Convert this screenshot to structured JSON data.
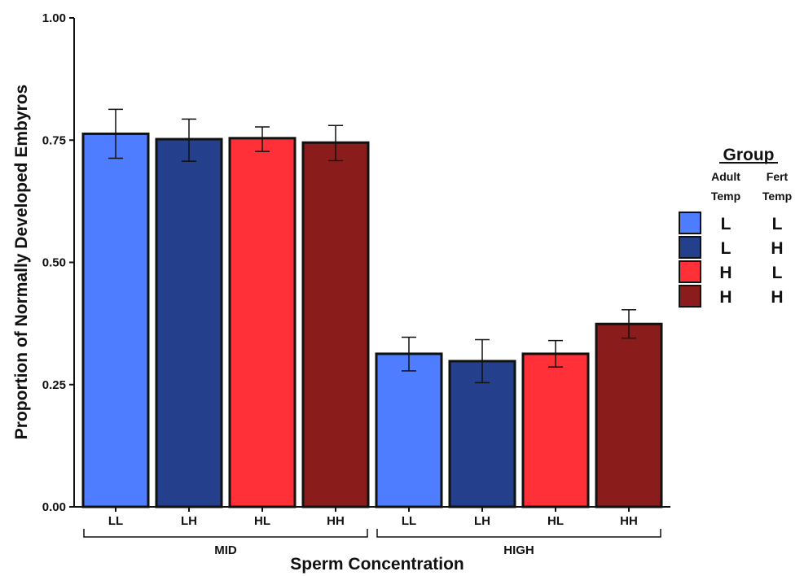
{
  "chart_data": {
    "type": "bar",
    "ylabel": "Proportion of Normally Developed Embyros",
    "xlabel": "Sperm Concentration",
    "ylim": [
      0,
      1
    ],
    "yticks": [
      "0.00",
      "0.25",
      "0.50",
      "0.75",
      "1.00"
    ],
    "grid": false,
    "groups": [
      {
        "name": "MID",
        "categories": [
          "LL",
          "LH",
          "HL",
          "HH"
        ],
        "values": [
          0.763,
          0.752,
          0.754,
          0.745
        ],
        "error_low": [
          0.713,
          0.707,
          0.727,
          0.708
        ],
        "error_high": [
          0.813,
          0.793,
          0.777,
          0.78
        ]
      },
      {
        "name": "HIGH",
        "categories": [
          "LL",
          "LH",
          "HL",
          "HH"
        ],
        "values": [
          0.313,
          0.298,
          0.313,
          0.374
        ],
        "error_low": [
          0.278,
          0.254,
          0.286,
          0.345
        ],
        "error_high": [
          0.347,
          0.342,
          0.34,
          0.403
        ]
      }
    ],
    "legend": {
      "title": "Group",
      "col1_header": [
        "Adult",
        "Temp"
      ],
      "col2_header": [
        "Fert",
        "Temp"
      ],
      "placement": "right",
      "entries": [
        {
          "key": "LL",
          "adult": "L",
          "fert": "L",
          "color": "#4f7dff"
        },
        {
          "key": "LH",
          "adult": "L",
          "fert": "H",
          "color": "#243f8c"
        },
        {
          "key": "HL",
          "adult": "H",
          "fert": "L",
          "color": "#ff3037"
        },
        {
          "key": "HH",
          "adult": "H",
          "fert": "H",
          "color": "#8b1c1c"
        }
      ]
    }
  }
}
